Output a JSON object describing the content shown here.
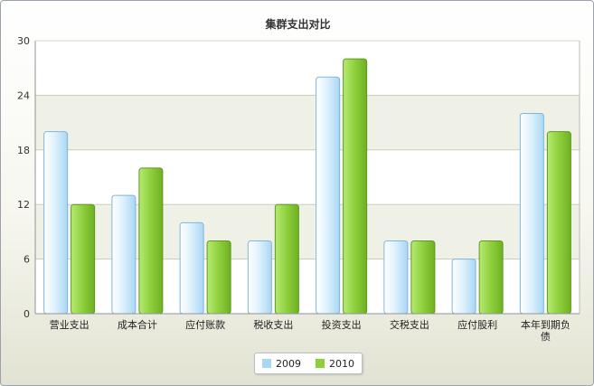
{
  "chart_data": {
    "type": "bar",
    "title": "集群支出对比",
    "xlabel": "",
    "ylabel": "",
    "ylim": [
      0,
      30
    ],
    "yticks": [
      0,
      6,
      12,
      18,
      24,
      30
    ],
    "grid": true,
    "legend_position": "bottom-center",
    "categories": [
      "营业支出",
      "成本合计",
      "应付账款",
      "税收支出",
      "投资支出",
      "交税支出",
      "应付股利",
      "本年到期负债"
    ],
    "series": [
      {
        "name": "2009",
        "color": "#a9d6f3",
        "values": [
          20,
          13,
          10,
          8,
          26,
          8,
          6,
          22
        ]
      },
      {
        "name": "2010",
        "color": "#8ecf3c",
        "values": [
          12,
          16,
          8,
          12,
          28,
          8,
          8,
          20
        ]
      }
    ]
  }
}
